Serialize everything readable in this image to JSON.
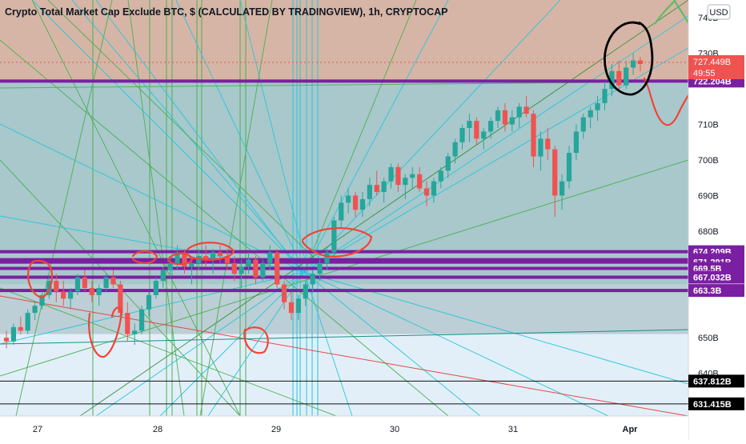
{
  "chart_data": {
    "type": "candlestick",
    "title": "Crypto Total Market Cap Exclude BTC, $ (CALCULATED BY TRADINGVIEW), 1h, CRYPTOCAP",
    "currency": "USD",
    "y_range": [
      628,
      745
    ],
    "y_ticks": [
      "740B",
      "730B",
      "710B",
      "700B",
      "690B",
      "680B",
      "650B",
      "640B"
    ],
    "x_ticks": [
      "27",
      "28",
      "29",
      "30",
      "31",
      "Apr"
    ],
    "price": {
      "value": "727.449B",
      "countdown": "49:55",
      "line": 727.449
    },
    "levels": [
      {
        "label": "722.204B",
        "value": 722.204,
        "style": "purple"
      },
      {
        "label": "674.209B",
        "value": 674.209,
        "style": "purple"
      },
      {
        "label": "671.966B",
        "value": 671.966,
        "style": "purple"
      },
      {
        "label": "671.291B",
        "value": 671.291,
        "style": "purple"
      },
      {
        "label": "669.5B",
        "value": 669.5,
        "style": "purple"
      },
      {
        "label": "667.032B",
        "value": 667.032,
        "style": "purple"
      },
      {
        "label": "663.3B",
        "value": 663.3,
        "style": "purple"
      },
      {
        "label": "637.812B",
        "value": 637.812,
        "style": "black"
      },
      {
        "label": "631.415B",
        "value": 631.415,
        "style": "black"
      }
    ],
    "candles": [
      [
        650,
        652,
        647,
        649
      ],
      [
        649,
        654,
        648,
        653
      ],
      [
        653,
        656,
        651,
        652
      ],
      [
        652,
        658,
        651,
        657
      ],
      [
        657,
        660,
        655,
        659
      ],
      [
        659,
        663,
        658,
        662
      ],
      [
        662,
        667,
        661,
        666
      ],
      [
        666,
        668,
        660,
        663
      ],
      [
        663,
        666,
        659,
        661
      ],
      [
        661,
        664,
        658,
        663
      ],
      [
        663,
        668,
        662,
        667
      ],
      [
        667,
        669,
        663,
        664
      ],
      [
        664,
        666,
        660,
        662
      ],
      [
        662,
        665,
        659,
        664
      ],
      [
        664,
        668,
        663,
        667
      ],
      [
        667,
        669,
        664,
        665
      ],
      [
        665,
        666,
        655,
        657
      ],
      [
        657,
        660,
        649,
        651
      ],
      [
        651,
        654,
        648,
        652
      ],
      [
        652,
        659,
        651,
        658
      ],
      [
        658,
        663,
        656,
        662
      ],
      [
        662,
        667,
        661,
        666
      ],
      [
        666,
        670,
        664,
        669
      ],
      [
        669,
        673,
        667,
        671
      ],
      [
        671,
        676,
        669,
        674
      ],
      [
        674,
        675,
        668,
        670
      ],
      [
        670,
        673,
        665,
        671
      ],
      [
        671,
        675,
        669,
        673
      ],
      [
        673,
        676,
        670,
        672
      ],
      [
        672,
        675,
        668,
        674
      ],
      [
        674,
        676,
        671,
        673
      ],
      [
        673,
        675,
        669,
        671
      ],
      [
        671,
        673,
        666,
        668
      ],
      [
        668,
        672,
        664,
        670
      ],
      [
        670,
        674,
        668,
        672
      ],
      [
        672,
        673,
        665,
        667
      ],
      [
        667,
        672,
        666,
        671
      ],
      [
        671,
        676,
        669,
        674
      ],
      [
        674,
        675,
        664,
        665
      ],
      [
        665,
        666,
        658,
        660
      ],
      [
        660,
        663,
        655,
        657
      ],
      [
        657,
        662,
        655,
        661
      ],
      [
        661,
        666,
        659,
        665
      ],
      [
        665,
        669,
        663,
        668
      ],
      [
        668,
        672,
        666,
        671
      ],
      [
        671,
        675,
        669,
        674
      ],
      [
        674,
        684,
        673,
        683
      ],
      [
        683,
        690,
        681,
        688
      ],
      [
        688,
        692,
        685,
        690
      ],
      [
        690,
        691,
        684,
        686
      ],
      [
        686,
        691,
        684,
        689
      ],
      [
        689,
        695,
        687,
        693
      ],
      [
        693,
        697,
        690,
        691
      ],
      [
        691,
        695,
        688,
        694
      ],
      [
        694,
        699,
        692,
        698
      ],
      [
        698,
        699,
        691,
        693
      ],
      [
        693,
        696,
        689,
        695
      ],
      [
        695,
        698,
        692,
        696
      ],
      [
        696,
        698,
        691,
        692
      ],
      [
        692,
        694,
        687,
        690
      ],
      [
        690,
        695,
        688,
        694
      ],
      [
        694,
        698,
        692,
        697
      ],
      [
        697,
        702,
        695,
        701
      ],
      [
        701,
        706,
        699,
        705
      ],
      [
        705,
        710,
        703,
        709
      ],
      [
        709,
        713,
        705,
        711
      ],
      [
        711,
        712,
        704,
        706
      ],
      [
        706,
        709,
        703,
        708
      ],
      [
        708,
        712,
        706,
        711
      ],
      [
        711,
        715,
        709,
        714
      ],
      [
        714,
        716,
        708,
        710
      ],
      [
        710,
        714,
        708,
        712
      ],
      [
        712,
        716,
        709,
        715
      ],
      [
        715,
        718,
        712,
        713
      ],
      [
        713,
        714,
        698,
        701
      ],
      [
        701,
        708,
        697,
        706
      ],
      [
        706,
        709,
        700,
        703
      ],
      [
        703,
        704,
        684,
        690
      ],
      [
        690,
        696,
        686,
        694
      ],
      [
        694,
        704,
        692,
        702
      ],
      [
        702,
        710,
        700,
        708
      ],
      [
        708,
        713,
        706,
        712
      ],
      [
        712,
        715,
        709,
        714
      ],
      [
        714,
        718,
        711,
        716
      ],
      [
        716,
        722,
        714,
        720
      ],
      [
        720,
        727,
        718,
        725
      ],
      [
        725,
        728,
        719,
        721
      ],
      [
        721,
        728,
        720,
        726
      ],
      [
        726,
        730,
        724,
        728
      ],
      [
        728,
        729,
        725,
        727
      ]
    ],
    "annotation_counts": {
      "trend_lines": "many",
      "vertical_lines": "many"
    }
  }
}
